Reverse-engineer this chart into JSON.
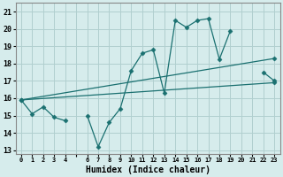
{
  "title": "",
  "xlabel": "Humidex (Indice chaleur)",
  "ylabel": "",
  "background_color": "#d6ecec",
  "grid_color": "#b0cfcf",
  "line_color": "#1a7070",
  "xlim": [
    -0.5,
    23.5
  ],
  "ylim": [
    12.8,
    21.5
  ],
  "xticks": [
    0,
    1,
    2,
    3,
    4,
    5,
    6,
    7,
    8,
    9,
    10,
    11,
    12,
    13,
    14,
    15,
    16,
    17,
    18,
    19,
    20,
    21,
    22,
    23
  ],
  "xtick_labels": [
    "0",
    "1",
    "2",
    "3",
    "4",
    "",
    "6",
    "7",
    "8",
    "9",
    "10",
    "11",
    "12",
    "13",
    "14",
    "15",
    "16",
    "17",
    "18",
    "19",
    "20",
    "21",
    "22",
    "23"
  ],
  "yticks": [
    13,
    14,
    15,
    16,
    17,
    18,
    19,
    20,
    21
  ],
  "series_zigzag": {
    "x": [
      0,
      1,
      2,
      3,
      4,
      6,
      7,
      8,
      9,
      10,
      11,
      12,
      13,
      14,
      15,
      16,
      17,
      18,
      19,
      22,
      23
    ],
    "y": [
      15.9,
      15.1,
      15.5,
      14.9,
      14.7,
      15.0,
      13.2,
      14.6,
      15.4,
      17.6,
      18.6,
      18.8,
      16.3,
      20.5,
      20.1,
      20.5,
      20.6,
      18.25,
      19.9,
      17.5,
      17.0
    ],
    "breaks_after": [
      4,
      19
    ]
  },
  "series_upper": {
    "x": [
      0,
      23
    ],
    "y": [
      15.9,
      18.3
    ]
  },
  "series_lower": {
    "x": [
      0,
      23
    ],
    "y": [
      15.9,
      16.9
    ]
  }
}
